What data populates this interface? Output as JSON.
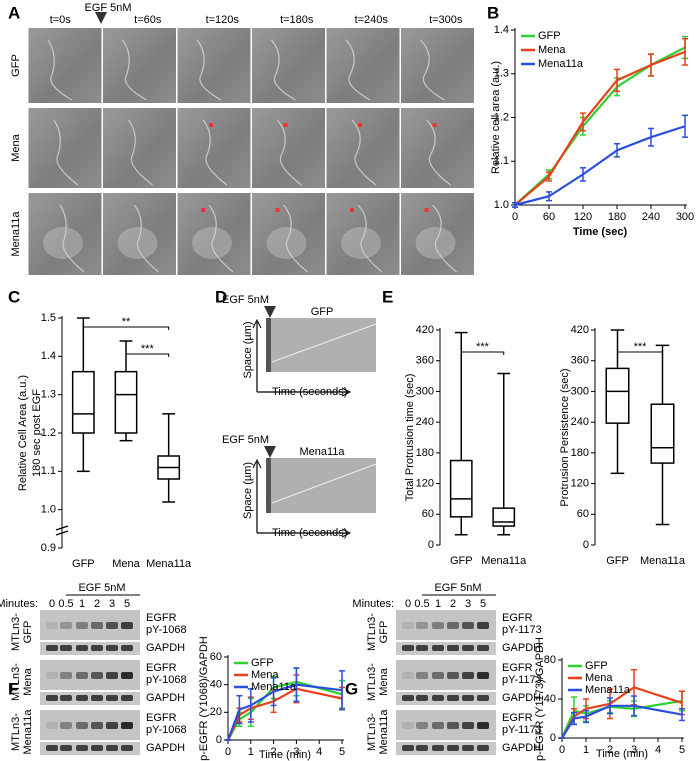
{
  "figure": {
    "panel_labels": [
      "A",
      "B",
      "C",
      "D",
      "E",
      "F",
      "G"
    ],
    "panel_a": {
      "stimulus": "EGF 5nM",
      "times": [
        "t=0s",
        "t=60s",
        "t=120s",
        "t=180s",
        "t=240s",
        "t=300s"
      ],
      "rows": [
        "GFP",
        "Mena",
        "Mena11a"
      ]
    },
    "panel_d": {
      "kymographs": [
        {
          "stimulus": "EGF 5nM",
          "label": "GFP",
          "y_axis": "Space (µm)",
          "x_axis": "Time (seconds)"
        },
        {
          "stimulus": "EGF 5nM",
          "label": "Mena11a",
          "y_axis": "Space (µm)",
          "x_axis": "Time (seconds)"
        }
      ]
    },
    "blots": [
      {
        "stimulus": "EGF 5nM",
        "minutes_label": "Minutes:",
        "minutes": [
          "0",
          "0.5",
          "1",
          "2",
          "3",
          "5"
        ],
        "rows": [
          {
            "cell": [
              "MTLn3-",
              "GFP"
            ],
            "target": [
              "EGFR",
              "pY-1068"
            ],
            "control": "GAPDH"
          },
          {
            "cell": [
              "MTLn3-",
              "Mena"
            ],
            "target": [
              "EGFR",
              "pY-1068"
            ],
            "control": "GAPDH"
          },
          {
            "cell": [
              "MTLn3-",
              "Mena11a"
            ],
            "target": [
              "EGFR",
              "pY-1068"
            ],
            "control": "GAPDH"
          }
        ]
      },
      {
        "stimulus": "EGF 5nM",
        "minutes_label": "Minutes:",
        "minutes": [
          "0",
          "0.5",
          "1",
          "2",
          "3",
          "5"
        ],
        "rows": [
          {
            "cell": [
              "MTLn3-",
              "GFP"
            ],
            "target": [
              "EGFR",
              "pY-1173"
            ],
            "control": "GAPDH"
          },
          {
            "cell": [
              "MTLn3-",
              "Mena"
            ],
            "target": [
              "EGFR",
              "pY-1173"
            ],
            "control": "GAPDH"
          },
          {
            "cell": [
              "MTLn3-",
              "Mena11a"
            ],
            "target": [
              "EGFR",
              "pY-1173"
            ],
            "control": "GAPDH"
          }
        ]
      }
    ]
  },
  "chart_data": [
    {
      "type": "line",
      "xlabel": "Time (sec)",
      "ylabel": [
        "Relative cell area (a.u.)"
      ],
      "x": [
        0,
        60,
        120,
        180,
        240,
        300
      ],
      "xlim": [
        0,
        300
      ],
      "xticks": [
        0,
        60,
        120,
        180,
        240,
        300
      ],
      "ylim": [
        1.0,
        1.4
      ],
      "yticks": [
        {
          "value": 1.0,
          "label": "1.0"
        },
        1.1,
        1.2,
        1.3,
        1.4
      ],
      "legend": "upper left",
      "series": [
        {
          "name": "GFP",
          "color": "#2fd12f",
          "values": [
            1.0,
            1.07,
            1.18,
            1.27,
            1.32,
            1.36
          ],
          "errors": [
            0.005,
            0.01,
            0.02,
            0.02,
            0.025,
            0.025
          ]
        },
        {
          "name": "Mena",
          "color": "#e8401c",
          "values": [
            1.0,
            1.065,
            1.19,
            1.285,
            1.32,
            1.35
          ],
          "errors": [
            0.005,
            0.01,
            0.02,
            0.025,
            0.025,
            0.03
          ]
        },
        {
          "name": "Mena11a",
          "color": "#2a4fe0",
          "values": [
            1.0,
            1.02,
            1.07,
            1.125,
            1.155,
            1.18
          ],
          "errors": [
            0.005,
            0.01,
            0.015,
            0.015,
            0.02,
            0.025
          ]
        }
      ]
    },
    {
      "type": "box",
      "ylabel": [
        "Relative Cell Area (a.u.)",
        "180 sec post EGF"
      ],
      "categories": [
        "GFP",
        "Mena",
        "Mena11a"
      ],
      "ylim": [
        0.9,
        1.5
      ],
      "yticks": [
        0.9,
        {
          "value": 1.0,
          "label": "1.0"
        },
        1.1,
        1.2,
        1.3,
        1.4,
        1.5
      ],
      "min": [
        1.1,
        1.18,
        1.02
      ],
      "q1": [
        1.2,
        1.2,
        1.08
      ],
      "median": [
        1.25,
        1.3,
        1.11
      ],
      "q3": [
        1.36,
        1.36,
        1.14
      ],
      "max": [
        1.5,
        1.44,
        1.25
      ],
      "annotations": [
        {
          "text": "**",
          "pair": [
            "GFP",
            "Mena11a"
          ]
        },
        {
          "text": "***",
          "pair": [
            "Mena",
            "Mena11a"
          ]
        }
      ]
    },
    {
      "type": "box",
      "ylabel": [
        "Total Protrusion time (sec)"
      ],
      "categories": [
        "GFP",
        "Mena11a"
      ],
      "ylim": [
        0,
        420
      ],
      "yticks": [
        0,
        60,
        120,
        180,
        240,
        300,
        360,
        420
      ],
      "min": [
        20,
        20
      ],
      "q1": [
        55,
        37
      ],
      "median": [
        90,
        45
      ],
      "q3": [
        165,
        72
      ],
      "max": [
        415,
        335
      ],
      "annotations": [
        {
          "text": "***",
          "pair": [
            "GFP",
            "Mena11a"
          ]
        }
      ]
    },
    {
      "type": "box",
      "ylabel": [
        "Protrusion Persistence (sec)"
      ],
      "categories": [
        "GFP",
        "Mena11a"
      ],
      "ylim": [
        0,
        420
      ],
      "yticks": [
        0,
        60,
        120,
        180,
        240,
        300,
        360,
        420
      ],
      "min": [
        140,
        40
      ],
      "q1": [
        238,
        160
      ],
      "median": [
        300,
        190
      ],
      "q3": [
        345,
        275
      ],
      "max": [
        420,
        390
      ],
      "annotations": [
        {
          "text": "***",
          "pair": [
            "GFP",
            "Mena11a"
          ]
        }
      ]
    },
    {
      "type": "line",
      "xlabel": "Time (min)",
      "ylabel": [
        "p-EGFR (Y1068)/GAPDH"
      ],
      "x": [
        0,
        0.5,
        1,
        2,
        3,
        5
      ],
      "xlim": [
        0,
        5
      ],
      "xticks": [
        0,
        1,
        2,
        3,
        4,
        5
      ],
      "ylim": [
        0,
        60
      ],
      "yticks": [
        0,
        20,
        40,
        60
      ],
      "legend": "upper left",
      "series": [
        {
          "name": "GFP",
          "color": "#2fd12f",
          "values": [
            0,
            15,
            20,
            38,
            42,
            33
          ],
          "errors": [
            0,
            5,
            10,
            8,
            10,
            10
          ]
        },
        {
          "name": "Mena",
          "color": "#e8401c",
          "values": [
            0,
            18,
            23,
            28,
            37,
            30
          ],
          "errors": [
            0,
            5,
            8,
            8,
            10,
            8
          ]
        },
        {
          "name": "Mena11a",
          "color": "#2a4fe0",
          "values": [
            0,
            22,
            25,
            35,
            40,
            36
          ],
          "errors": [
            0,
            10,
            12,
            10,
            12,
            14
          ]
        }
      ]
    },
    {
      "type": "line",
      "xlabel": "Time (min)",
      "ylabel": [
        "p-EGFR (Y1173)/GAPDH"
      ],
      "x": [
        0,
        0.5,
        1,
        2,
        3,
        5
      ],
      "xlim": [
        0,
        5
      ],
      "xticks": [
        0,
        1,
        2,
        3,
        4,
        5
      ],
      "ylim": [
        0,
        80
      ],
      "yticks": [
        0,
        40,
        80
      ],
      "legend": "upper left",
      "series": [
        {
          "name": "GFP",
          "color": "#2fd12f",
          "values": [
            0,
            28,
            25,
            32,
            30,
            38
          ],
          "errors": [
            0,
            14,
            8,
            6,
            8,
            10
          ]
        },
        {
          "name": "Mena",
          "color": "#e8401c",
          "values": [
            0,
            22,
            30,
            35,
            52,
            36
          ],
          "errors": [
            0,
            8,
            10,
            15,
            18,
            12
          ]
        },
        {
          "name": "Mena11a",
          "color": "#2a4fe0",
          "values": [
            0,
            20,
            22,
            33,
            33,
            24
          ],
          "errors": [
            0,
            6,
            6,
            8,
            10,
            6
          ]
        }
      ]
    }
  ]
}
